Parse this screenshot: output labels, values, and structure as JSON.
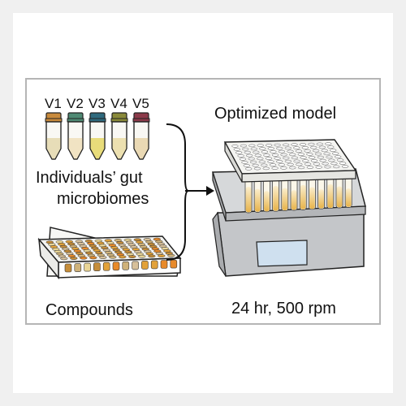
{
  "vials": [
    {
      "label": "V1",
      "cap": "#c88a3c",
      "liquid": "#e7ddb8"
    },
    {
      "label": "V2",
      "cap": "#4f8a74",
      "liquid": "#f1e3c3"
    },
    {
      "label": "V3",
      "cap": "#2f6a7e",
      "liquid": "#e8dc7a"
    },
    {
      "label": "V4",
      "cap": "#8a8a3a",
      "liquid": "#ece0b0"
    },
    {
      "label": "V5",
      "cap": "#8c3a4a",
      "liquid": "#ead9b4"
    }
  ],
  "labels": {
    "microbiomes_line1": "Individuals’ gut",
    "microbiomes_line2": "microbiomes",
    "compounds": "Compounds",
    "model": "Optimized model",
    "conditions": "24 hr, 500 rpm"
  },
  "colors": {
    "background": "#f0f0f0",
    "panel_border": "#b5b5b5",
    "plate_fill": "#f0f0ec",
    "shaker_body": "#bfc1c4",
    "shaker_screen": "#cfe0ef",
    "compound_wells": [
      "#e2a23a",
      "#d7c09a",
      "#c58d3a",
      "#e9d596",
      "#e88a2a",
      "#cfb27a"
    ]
  },
  "icons": [
    "vial-icon",
    "compound-plate-icon",
    "bracket-arrow-icon",
    "shaker-plate-icon"
  ]
}
